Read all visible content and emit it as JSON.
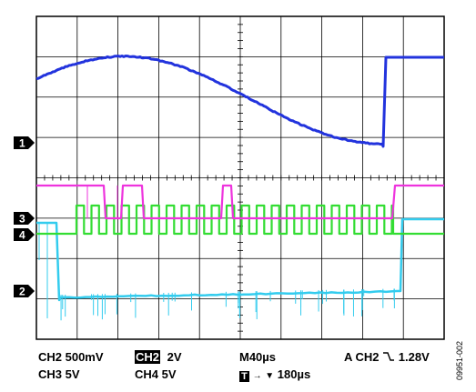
{
  "screen": {
    "background": "#ffffff",
    "grid_color": "#000000",
    "divisions_x": 10,
    "divisions_y": 8
  },
  "channels": [
    {
      "id": "1",
      "color": "#2233dd"
    },
    {
      "id": "2",
      "color": "#33ccee"
    },
    {
      "id": "3",
      "color": "#ee33dd"
    },
    {
      "id": "4",
      "color": "#33dd33"
    }
  ],
  "readouts": {
    "ch2_scale": "CH2  500mV",
    "ch3_scale": "CH3  5V",
    "trigger_source_badge": "CH2",
    "trigger_source_value": "2V",
    "ch4_scale": "CH4  5V",
    "timebase": "M40µs",
    "trigger_position_badge": "T",
    "trigger_position_value": "180µs",
    "trigger_mode": "A  CH2",
    "trigger_slope_icon": "falling-edge-icon",
    "trigger_level": "1.28V"
  },
  "figure_id": "09951-002"
}
